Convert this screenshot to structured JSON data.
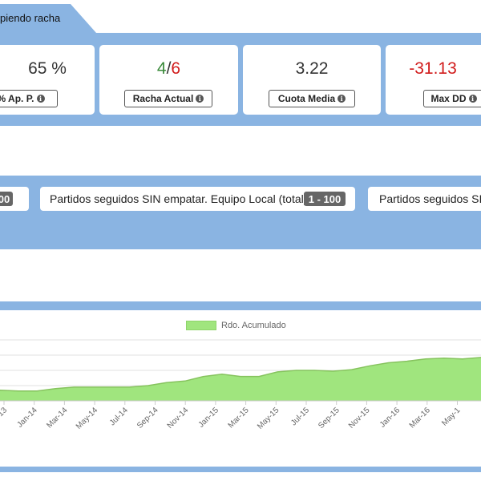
{
  "tab": {
    "label": "piendo racha"
  },
  "stats": [
    {
      "value": "65 %",
      "label": "% Ap. P."
    },
    {
      "value_good": "4",
      "value_sep": "/",
      "value_bad": "6",
      "label": "Racha Actual"
    },
    {
      "value": "3.22",
      "label": "Cuota Media"
    },
    {
      "value": "-31.13",
      "label": "Max DD"
    }
  ],
  "filters": [
    {
      "badge": "00"
    },
    {
      "text": "Partidos seguidos SIN empatar. Equipo Local (total):",
      "badge": "1 - 100"
    },
    {
      "text": "Partidos seguidos SIN"
    }
  ],
  "chart_data": {
    "type": "area",
    "series": [
      {
        "name": "Rdo. Acumulado",
        "values": [
          -3,
          -3.5,
          -3.5,
          -2,
          -1,
          -1,
          -1,
          -1,
          0,
          2,
          3,
          6,
          7.5,
          6,
          6,
          9,
          10,
          10,
          9.5,
          10.5,
          13,
          15,
          16,
          17.5,
          18,
          17.5,
          18.5
        ]
      }
    ],
    "x_tick_labels": [
      "ov-13",
      "Jan-14",
      "Mar-14",
      "May-14",
      "Jul-14",
      "Sep-14",
      "Nov-14",
      "Jan-15",
      "Mar-15",
      "May-15",
      "Jul-15",
      "Sep-15",
      "Nov-15",
      "Jan-16",
      "Mar-16",
      "May-1"
    ],
    "ylim": [
      -10,
      30
    ],
    "colors": {
      "fill": "#a0e57e",
      "line": "#86c35e"
    },
    "grid": true
  },
  "icons": {
    "info": "info-circle-icon"
  }
}
